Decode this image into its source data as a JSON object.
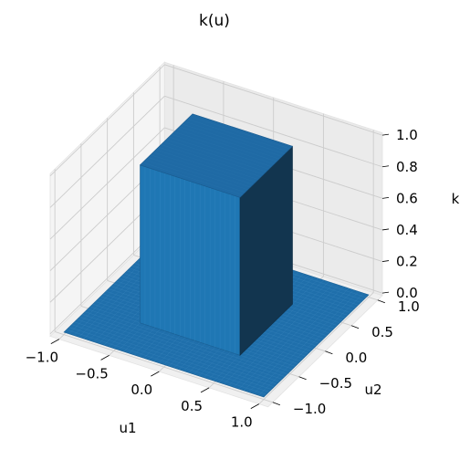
{
  "chart_data": {
    "type": "surface",
    "title": "k(u)",
    "xlabel": "u1",
    "ylabel": "u2",
    "zlabel": "k",
    "xlim": [
      -1.0,
      1.0
    ],
    "ylim": [
      -1.0,
      1.0
    ],
    "zlim": [
      0.0,
      1.0
    ],
    "xticks": [
      "−1.0",
      "−0.5",
      "0.0",
      "0.5",
      "1.0"
    ],
    "yticks": [
      "−1.0",
      "−0.5",
      "0.0",
      "0.5",
      "1.0"
    ],
    "zticks": [
      "0.0",
      "0.2",
      "0.4",
      "0.6",
      "0.8",
      "1.0"
    ],
    "surface": {
      "description": "k = 1 where |u1| <= 0.5 and |u2| <= 0.5, else 0",
      "box_u1": [
        -0.5,
        0.5
      ],
      "box_u2": [
        -0.5,
        0.5
      ],
      "inside_value": 1.0,
      "outside_value": 0.0
    },
    "grid": true,
    "colors": {
      "surface_top": "#1f6aa5",
      "surface_front": "#1f77b4",
      "surface_side": "#12354f",
      "floor": "#1f6fab",
      "pane": "#f2f2f2",
      "gridline": "#cccccc"
    }
  }
}
